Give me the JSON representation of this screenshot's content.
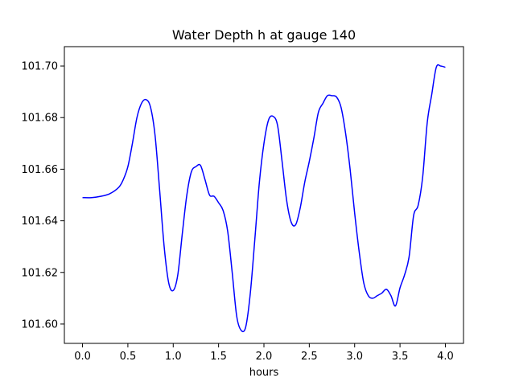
{
  "chart_data": {
    "type": "line",
    "title": "Water Depth h at gauge 140",
    "xlabel": "hours",
    "ylabel": "",
    "xlim": [
      -0.2,
      4.2
    ],
    "ylim": [
      101.5925,
      101.7075
    ],
    "xticks": [
      0.0,
      0.5,
      1.0,
      1.5,
      2.0,
      2.5,
      3.0,
      3.5,
      4.0
    ],
    "xtick_labels": [
      "0.0",
      "0.5",
      "1.0",
      "1.5",
      "2.0",
      "2.5",
      "3.0",
      "3.5",
      "4.0"
    ],
    "yticks": [
      101.6,
      101.62,
      101.64,
      101.66,
      101.68,
      101.7
    ],
    "ytick_labels": [
      "101.60",
      "101.62",
      "101.64",
      "101.66",
      "101.68",
      "101.70"
    ],
    "grid": false,
    "series": [
      {
        "color": "#0000ff",
        "x": [
          0.0,
          0.1,
          0.2,
          0.3,
          0.4,
          0.45,
          0.5,
          0.55,
          0.6,
          0.65,
          0.7,
          0.75,
          0.8,
          0.85,
          0.9,
          0.95,
          1.0,
          1.05,
          1.1,
          1.15,
          1.2,
          1.25,
          1.3,
          1.35,
          1.4,
          1.45,
          1.5,
          1.55,
          1.6,
          1.65,
          1.7,
          1.75,
          1.8,
          1.85,
          1.9,
          1.95,
          2.0,
          2.05,
          2.1,
          2.15,
          2.2,
          2.25,
          2.3,
          2.35,
          2.4,
          2.45,
          2.5,
          2.55,
          2.6,
          2.65,
          2.7,
          2.75,
          2.8,
          2.85,
          2.9,
          2.95,
          3.0,
          3.05,
          3.1,
          3.15,
          3.2,
          3.25,
          3.3,
          3.35,
          3.4,
          3.45,
          3.5,
          3.55,
          3.6,
          3.65,
          3.7,
          3.75,
          3.8,
          3.85,
          3.9,
          3.95,
          4.0
        ],
        "values": [
          101.649,
          101.649,
          101.6495,
          101.6505,
          101.653,
          101.656,
          101.661,
          101.67,
          101.68,
          101.6855,
          101.687,
          101.684,
          101.673,
          101.652,
          101.63,
          101.616,
          101.613,
          101.619,
          101.635,
          101.65,
          101.659,
          101.661,
          101.6615,
          101.656,
          101.65,
          101.6495,
          101.647,
          101.644,
          101.636,
          101.62,
          101.603,
          101.5975,
          101.599,
          101.612,
          101.633,
          101.655,
          101.67,
          101.679,
          101.6805,
          101.677,
          101.663,
          101.648,
          101.6395,
          101.6385,
          101.645,
          101.655,
          101.663,
          101.672,
          101.682,
          101.6855,
          101.6885,
          101.6885,
          101.688,
          101.684,
          101.674,
          101.66,
          101.643,
          101.628,
          101.616,
          101.611,
          101.61,
          101.611,
          101.612,
          101.6135,
          101.611,
          101.607,
          101.614,
          101.619,
          101.626,
          101.642,
          101.646,
          101.657,
          101.678,
          101.689,
          101.6995,
          101.7,
          101.6995
        ]
      }
    ]
  }
}
